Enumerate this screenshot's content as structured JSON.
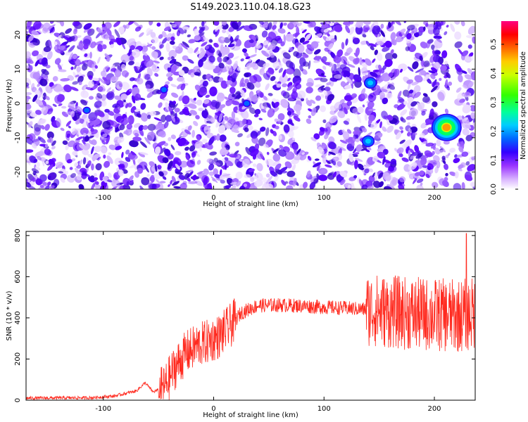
{
  "title": "S149.2023.110.04.18.G23",
  "chart_data": [
    {
      "type": "heatmap",
      "xlabel": "Height of straight line (km)",
      "ylabel": "Frequency (Hz)",
      "xlim": [
        -170,
        237
      ],
      "ylim": [
        -25,
        24
      ],
      "xticks": [
        -100,
        0,
        100,
        200
      ],
      "yticks": [
        -20,
        -10,
        0,
        10,
        20
      ],
      "grid": false,
      "colorbar": {
        "label": "Normalized spectral amplitude",
        "range": [
          0.0,
          0.58
        ],
        "ticks": [
          0.0,
          0.1,
          0.2,
          0.3,
          0.4,
          0.5
        ],
        "colors": [
          "#ffffff",
          "#cc99ff",
          "#6a00ff",
          "#0000ff",
          "#00c8ff",
          "#00ff66",
          "#ffff00",
          "#ff8000",
          "#ff0000",
          "#ff0080"
        ]
      },
      "hotspots": [
        {
          "x": 211,
          "y": -7,
          "amp": 0.58
        },
        {
          "x": 142,
          "y": 6,
          "amp": 0.22
        },
        {
          "x": 140,
          "y": -11,
          "amp": 0.2
        },
        {
          "x": -45,
          "y": 4,
          "amp": 0.12
        },
        {
          "x": 30,
          "y": 0,
          "amp": 0.12
        },
        {
          "x": -115,
          "y": -2,
          "amp": 0.1
        }
      ]
    },
    {
      "type": "line",
      "xlabel": "Height of straight line (km)",
      "ylabel": "SNR (10 * v/v)",
      "xlim": [
        -170,
        237
      ],
      "ylim": [
        0,
        820
      ],
      "xticks": [
        -100,
        0,
        100,
        200
      ],
      "yticks": [
        0,
        200,
        400,
        600,
        800
      ],
      "color": "#ff2a1f",
      "envelope_points": [
        {
          "x": -170,
          "y": 10
        },
        {
          "x": -110,
          "y": 12
        },
        {
          "x": -90,
          "y": 20
        },
        {
          "x": -70,
          "y": 45
        },
        {
          "x": -62,
          "y": 85
        },
        {
          "x": -55,
          "y": 40
        },
        {
          "x": -45,
          "y": 60
        },
        {
          "x": -35,
          "y": 160
        },
        {
          "x": -25,
          "y": 230
        },
        {
          "x": -15,
          "y": 265
        },
        {
          "x": -5,
          "y": 285
        },
        {
          "x": 5,
          "y": 310
        },
        {
          "x": 15,
          "y": 360
        },
        {
          "x": 25,
          "y": 425
        },
        {
          "x": 40,
          "y": 460
        },
        {
          "x": 60,
          "y": 462
        },
        {
          "x": 80,
          "y": 458
        },
        {
          "x": 100,
          "y": 452
        },
        {
          "x": 120,
          "y": 447
        },
        {
          "x": 140,
          "y": 440
        },
        {
          "x": 160,
          "y": 430
        },
        {
          "x": 180,
          "y": 420
        },
        {
          "x": 200,
          "y": 415
        },
        {
          "x": 220,
          "y": 410
        },
        {
          "x": 237,
          "y": 420
        }
      ],
      "peak": {
        "x": 229,
        "y": 810
      }
    }
  ]
}
